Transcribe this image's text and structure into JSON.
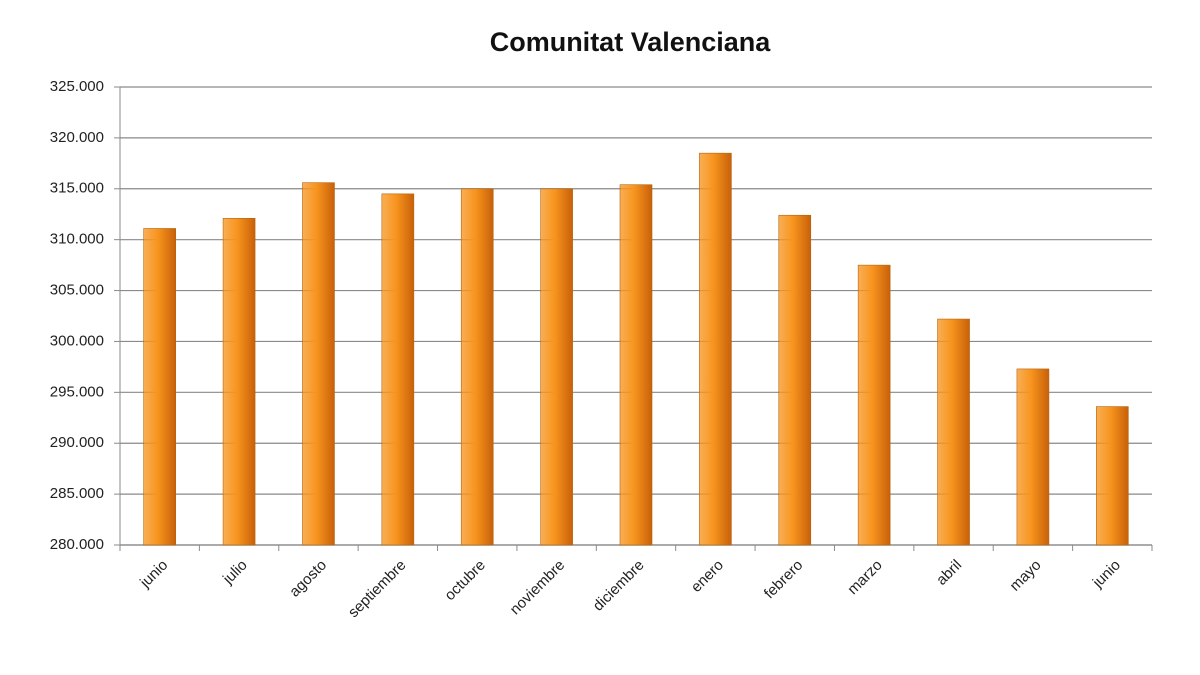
{
  "chart_data": {
    "type": "bar",
    "title": "Comunitat Valenciana",
    "categories": [
      "junio",
      "julio",
      "agosto",
      "septiembre",
      "octubre",
      "noviembre",
      "diciembre",
      "enero",
      "febrero",
      "marzo",
      "abril",
      "mayo",
      "junio"
    ],
    "values": [
      311100,
      312100,
      315600,
      314500,
      315000,
      315000,
      315400,
      318500,
      312400,
      307500,
      302200,
      297300,
      293600
    ],
    "color": "#f7941d",
    "ylim": [
      280000,
      325000
    ],
    "yticks": [
      {
        "value": 280000,
        "label": "280.000"
      },
      {
        "value": 285000,
        "label": "285.000"
      },
      {
        "value": 290000,
        "label": "290.000"
      },
      {
        "value": 295000,
        "label": "295.000"
      },
      {
        "value": 300000,
        "label": "300.000"
      },
      {
        "value": 305000,
        "label": "305.000"
      },
      {
        "value": 310000,
        "label": "310.000"
      },
      {
        "value": 315000,
        "label": "315.000"
      },
      {
        "value": 320000,
        "label": "320.000"
      },
      {
        "value": 325000,
        "label": "325.000"
      }
    ],
    "grid": true
  }
}
